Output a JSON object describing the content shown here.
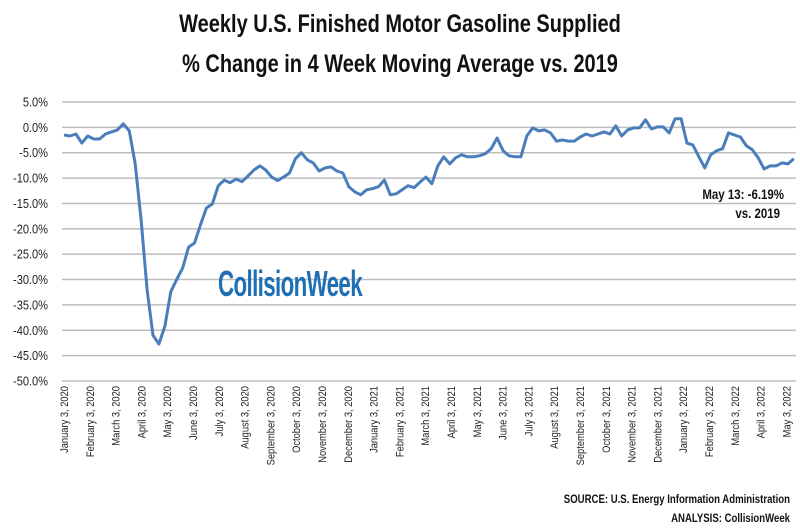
{
  "chart_data": {
    "type": "line",
    "title": "Weekly U.S. Finished Motor Gasoline Supplied",
    "subtitle": "% Change in 4 Week Moving Average vs. 2019",
    "xlabel": "",
    "ylabel": "",
    "ylim": [
      -50,
      5
    ],
    "ytick_step": 5,
    "ytick_labels": [
      "5.0%",
      "0.0%",
      "-5.0%",
      "-10.0%",
      "-15.0%",
      "-20.0%",
      "-25.0%",
      "-30.0%",
      "-35.0%",
      "-40.0%",
      "-45.0%",
      "-50.0%"
    ],
    "xtick_labels": [
      "January 3, 2020",
      "February 3, 2020",
      "March 3, 2020",
      "April 3, 2020",
      "May 3, 2020",
      "June 3, 2020",
      "July 3, 2020",
      "August 3, 2020",
      "September 3, 2020",
      "October 3, 2020",
      "November 3, 2020",
      "December 3, 2020",
      "January 3, 2021",
      "February 3, 2021",
      "March 3, 2021",
      "April 3, 2021",
      "May 3, 2021",
      "June 3, 2021",
      "July 3, 2021",
      "August 3, 2021",
      "September 3, 2021",
      "October 3, 2021",
      "November 3, 2021",
      "December 3, 2021",
      "January 3, 2022",
      "February 3, 2022",
      "March 3, 2022",
      "April 3, 2022",
      "May 3, 2022"
    ],
    "frequency": "weekly",
    "grid": true,
    "line_color": "#4a7ebb",
    "series": [
      {
        "values": [
          -1.5,
          -1.7,
          -1.3,
          -3.1,
          -1.7,
          -2.3,
          -2.3,
          -1.3,
          -0.9,
          -0.5,
          0.7,
          -0.7,
          -7.2,
          -18.2,
          -32.0,
          -41.0,
          -42.7,
          -39.2,
          -32.4,
          -30.0,
          -27.7,
          -23.6,
          -22.8,
          -19.2,
          -15.9,
          -15.1,
          -11.5,
          -10.4,
          -10.9,
          -10.2,
          -10.7,
          -9.6,
          -8.4,
          -7.6,
          -8.4,
          -9.8,
          -10.5,
          -9.8,
          -9.0,
          -6.2,
          -5.0,
          -6.4,
          -7.0,
          -8.6,
          -8.0,
          -7.8,
          -8.6,
          -9.0,
          -11.7,
          -12.7,
          -13.3,
          -12.3,
          -12.1,
          -11.7,
          -10.4,
          -13.3,
          -13.1,
          -12.3,
          -11.5,
          -11.9,
          -10.8,
          -9.8,
          -11.1,
          -7.6,
          -5.8,
          -7.2,
          -6.0,
          -5.4,
          -5.8,
          -5.8,
          -5.6,
          -5.2,
          -4.2,
          -2.1,
          -4.6,
          -5.6,
          -5.8,
          -5.8,
          -1.7,
          -0.1,
          -0.7,
          -0.5,
          -1.1,
          -2.7,
          -2.5,
          -2.7,
          -2.7,
          -1.9,
          -1.3,
          -1.7,
          -1.3,
          -0.9,
          -1.3,
          0.3,
          -1.7,
          -0.5,
          -0.1,
          -0.1,
          1.5,
          -0.3,
          0.1,
          0.1,
          -1.1,
          1.7,
          1.7,
          -3.1,
          -3.5,
          -5.8,
          -8.0,
          -5.4,
          -4.6,
          -4.2,
          -1.1,
          -1.5,
          -1.9,
          -3.6,
          -4.4,
          -6.0,
          -8.2,
          -7.6,
          -7.6,
          -7.0,
          -7.2,
          -6.19
        ]
      }
    ],
    "annotations": [
      "May 13: -6.19%",
      "vs. 2019"
    ],
    "source": "SOURCE: U.S. Energy Information Administration",
    "analysis": "ANALYSIS: CollisionWeek"
  },
  "watermark": "CollisionWeek"
}
